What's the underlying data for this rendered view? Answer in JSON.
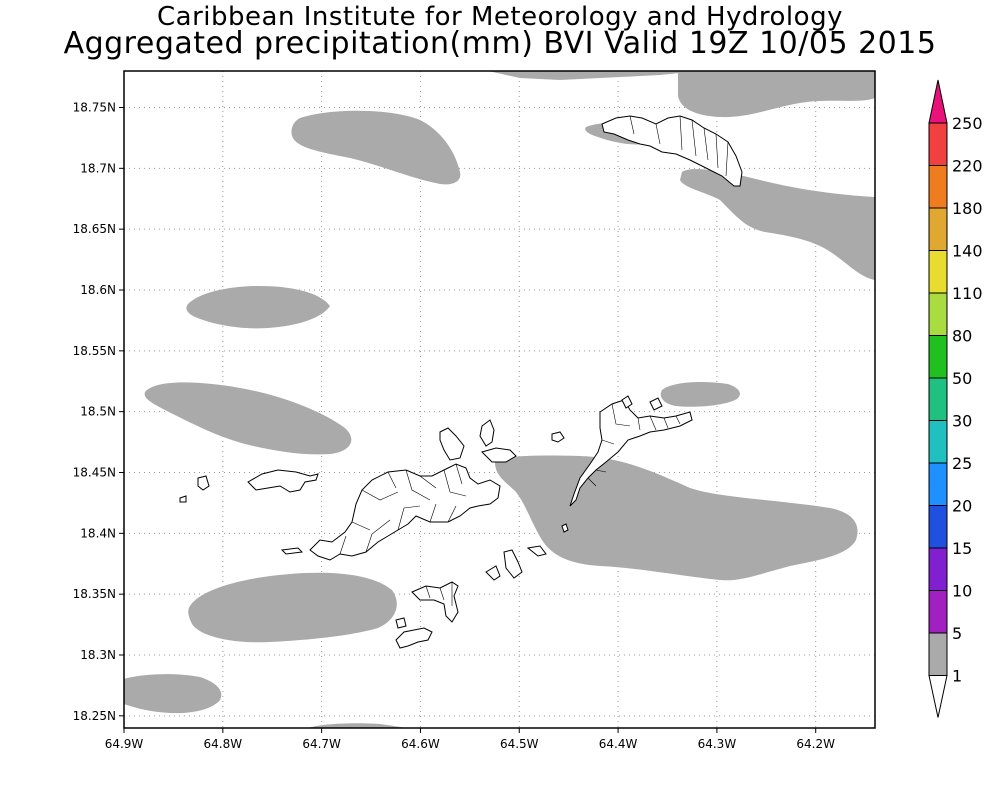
{
  "titles": {
    "line1": "Caribbean Institute for Meteorology and Hydrology",
    "line2": "Aggregated precipitation(mm) BVI Valid 19Z 10/05 2015"
  },
  "map": {
    "lon_range": [
      -64.9,
      -64.14
    ],
    "lat_range": [
      18.24,
      18.78
    ],
    "lon_ticks": [
      "64.9W",
      "64.8W",
      "64.7W",
      "64.6W",
      "64.5W",
      "64.4W",
      "64.3W",
      "64.2W"
    ],
    "lat_ticks": [
      "18.75N",
      "18.7N",
      "18.65N",
      "18.6N",
      "18.55N",
      "18.5N",
      "18.45N",
      "18.4N",
      "18.35N",
      "18.3N",
      "18.25N"
    ],
    "grid": true,
    "gridline_style": "dotted"
  },
  "legend": {
    "labels": [
      "250",
      "220",
      "180",
      "140",
      "110",
      "80",
      "50",
      "30",
      "25",
      "20",
      "15",
      "10",
      "5",
      "1"
    ],
    "colors": [
      "#e8127a",
      "#f04040",
      "#f07c20",
      "#e0a830",
      "#e8dc30",
      "#a8dc40",
      "#20c020",
      "#20c080",
      "#20c0c0",
      "#1e90ff",
      "#2050e0",
      "#8020d0",
      "#a020c0",
      "#aaaaaa",
      "#ffffff"
    ]
  },
  "precip_color": "#aaaaaa"
}
